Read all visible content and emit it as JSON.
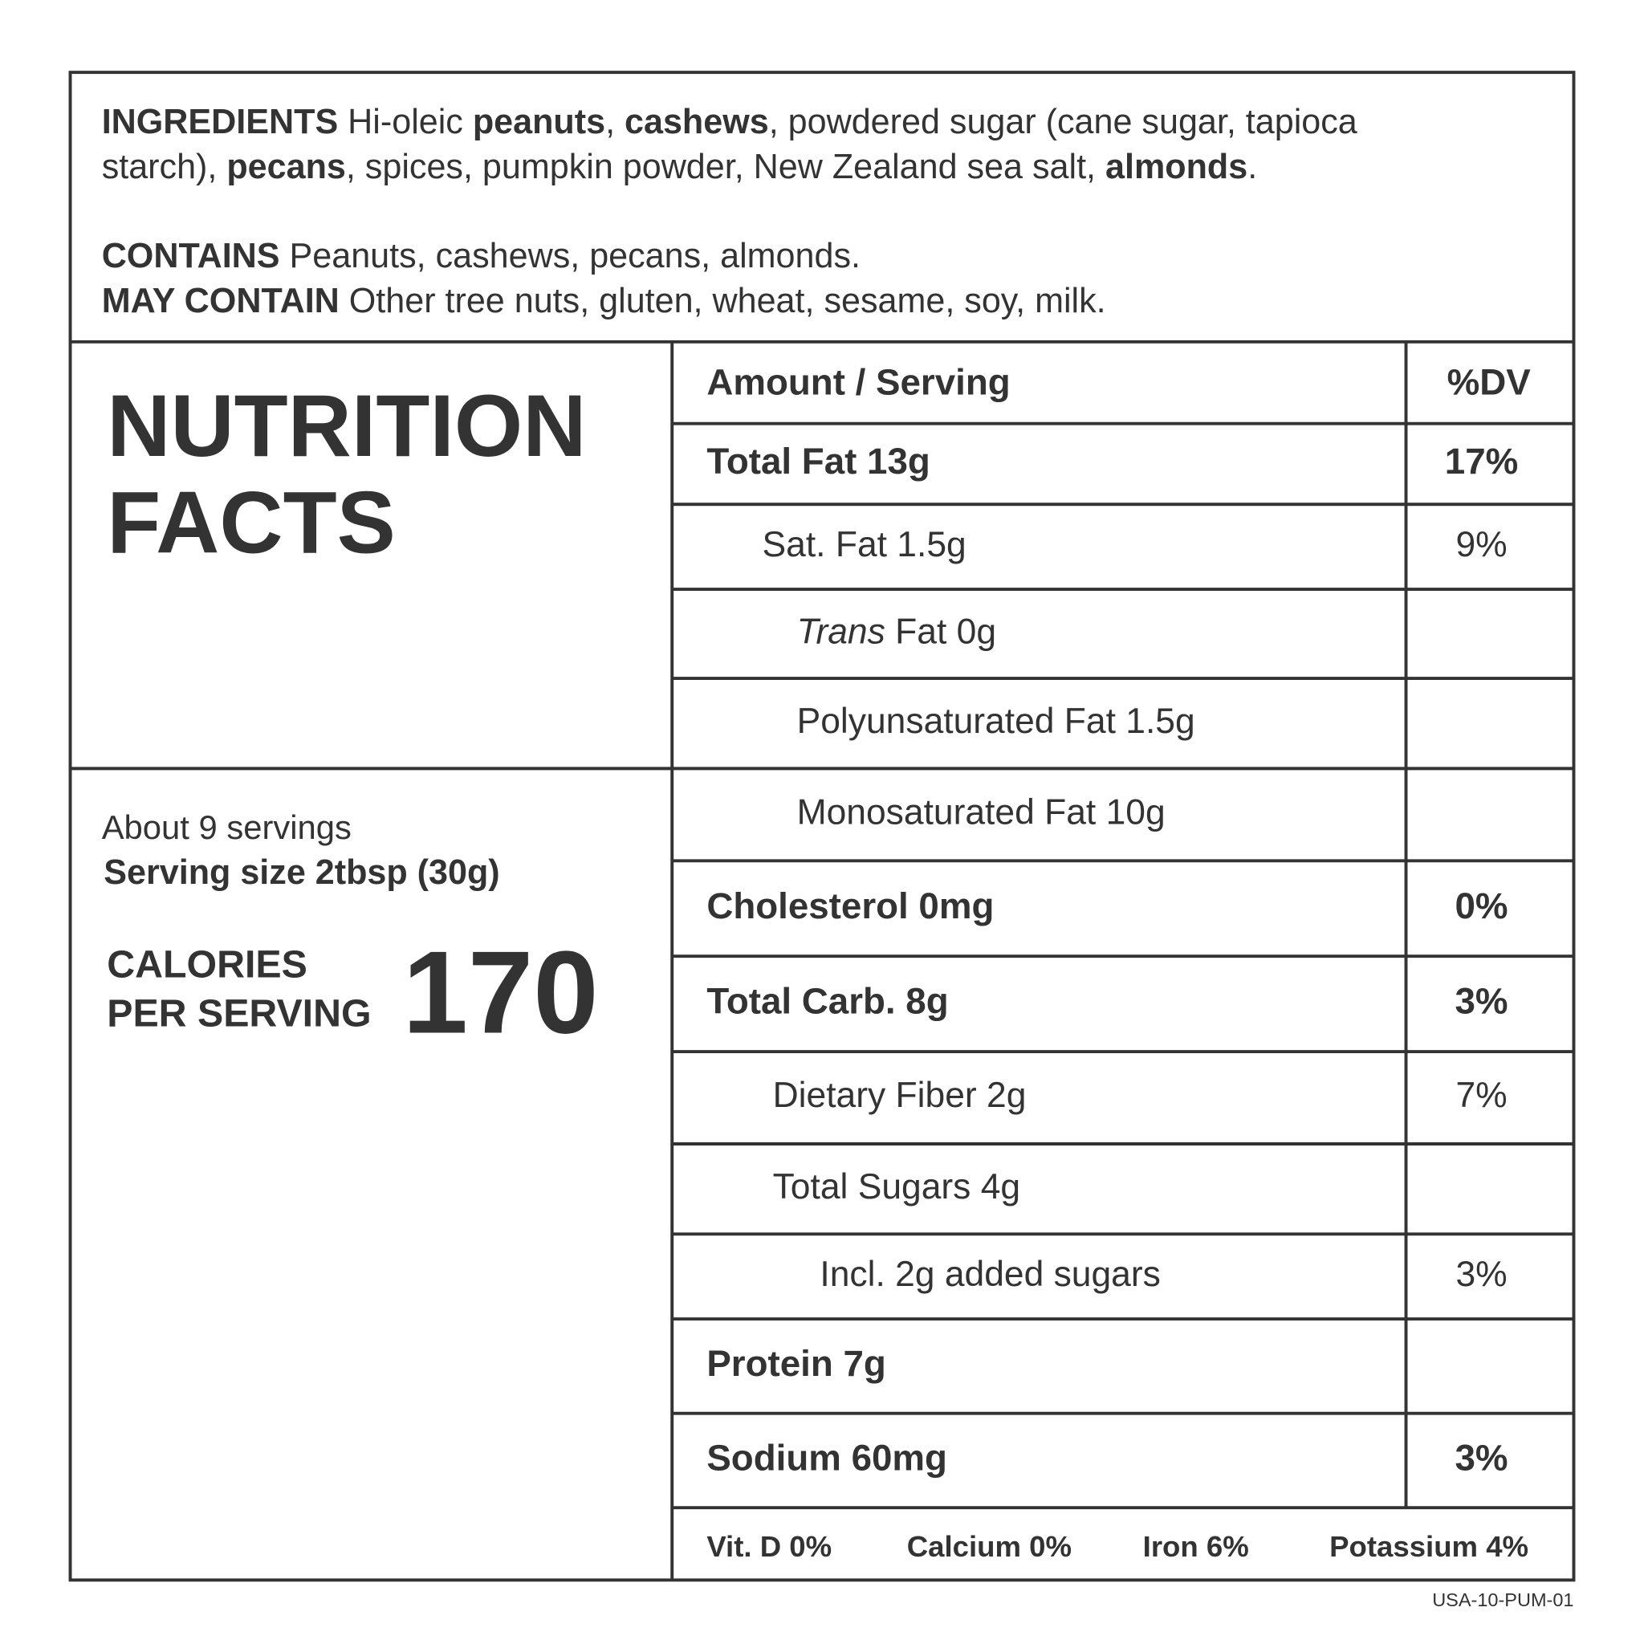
{
  "ingredients": {
    "lines": [
      [
        {
          "text": "INGREDIENTS",
          "bold": true
        },
        {
          "text": " Hi-oleic "
        },
        {
          "text": "peanuts",
          "bold": true
        },
        {
          "text": ", "
        },
        {
          "text": "cashews",
          "bold": true
        },
        {
          "text": ", powdered sugar (cane sugar, tapioca"
        }
      ],
      [
        {
          "text": "starch), "
        },
        {
          "text": "pecans",
          "bold": true
        },
        {
          "text": ", spices, pumpkin powder, New Zealand sea salt, "
        },
        {
          "text": "almonds",
          "bold": true
        },
        {
          "text": "."
        }
      ]
    ]
  },
  "allergens": {
    "lines": [
      [
        {
          "text": "CONTAINS",
          "bold": true
        },
        {
          "text": " Peanuts, cashews, pecans, almonds."
        }
      ],
      [
        {
          "text": "MAY CONTAIN",
          "bold": true
        },
        {
          "text": " Other tree nuts, gluten, wheat, sesame, soy, milk."
        }
      ]
    ]
  },
  "title": [
    "NUTRITION",
    "FACTS"
  ],
  "servings": "About 9 servings",
  "serving_size": "Serving size 2tbsp (30g)",
  "calories": {
    "label": [
      "CALORIES",
      "PER SERVING"
    ],
    "value": "170"
  },
  "table": {
    "header": [
      "Amount / Serving",
      "%DV"
    ],
    "rows": [
      {
        "label": "Total Fat 13g",
        "dv": "17%",
        "bold": true,
        "level": 0
      },
      {
        "label": "Sat. Fat 1.5g",
        "dv": "9%",
        "level": 1
      },
      {
        "label": [
          {
            "text": "Trans",
            "italic": true
          },
          {
            "text": " Fat 0g"
          }
        ],
        "level": 2
      },
      {
        "label": "Polyunsaturated Fat 1.5g",
        "level": 2
      },
      {
        "label": "Monosaturated Fat 10g",
        "level": 2
      },
      {
        "label": "Cholesterol 0mg",
        "dv": "0%",
        "bold": true,
        "level": 0
      },
      {
        "label": "Total Carb. 8g",
        "dv": "3%",
        "bold": true,
        "level": 0
      },
      {
        "label": "Dietary Fiber 2g",
        "dv": "7%",
        "level": 1
      },
      {
        "label": "Total Sugars 4g",
        "level": 1
      },
      {
        "label": "Incl. 2g added sugars",
        "dv": "3%",
        "level": 2
      },
      {
        "label": "Protein 7g",
        "bold": true,
        "level": 0
      },
      {
        "label": "Sodium 60mg",
        "dv": "3%",
        "bold": true,
        "level": 0
      }
    ]
  },
  "footer": [
    "Vit. D 0%",
    "Calcium 0%",
    "Iron 6%",
    "Potassium 4%"
  ],
  "code": "USA-10-PUM-01"
}
